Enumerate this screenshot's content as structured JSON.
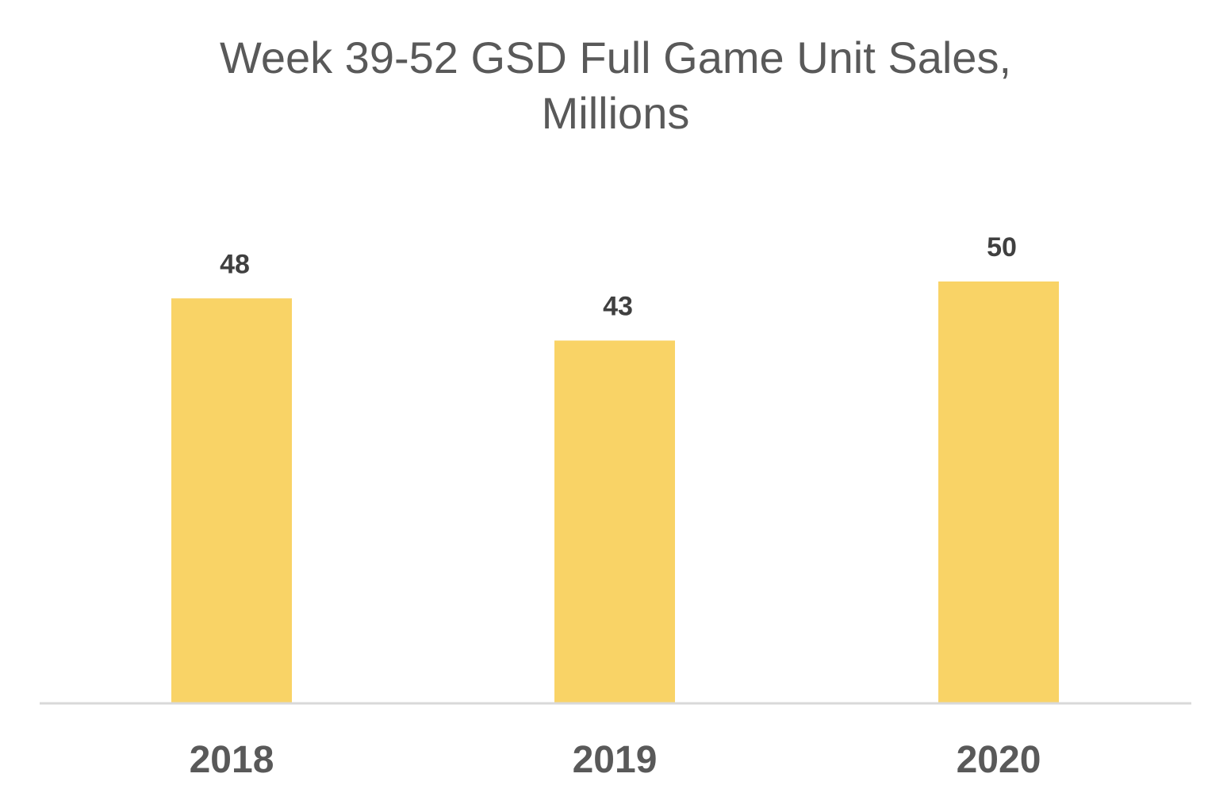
{
  "chart_data": {
    "type": "bar",
    "title_line1": "Week 39-52 GSD Full Game Unit Sales,",
    "title_line2": "Millions",
    "categories": [
      "2018",
      "2019",
      "2020"
    ],
    "values": [
      48,
      43,
      50
    ],
    "data_labels": [
      "48",
      "43",
      "50"
    ],
    "xlabel": "",
    "ylabel": "",
    "ylim": [
      0,
      50
    ],
    "grid": false,
    "legend": "none",
    "bar_color": "#F9D366",
    "axis_color": "#D9D9D9"
  }
}
